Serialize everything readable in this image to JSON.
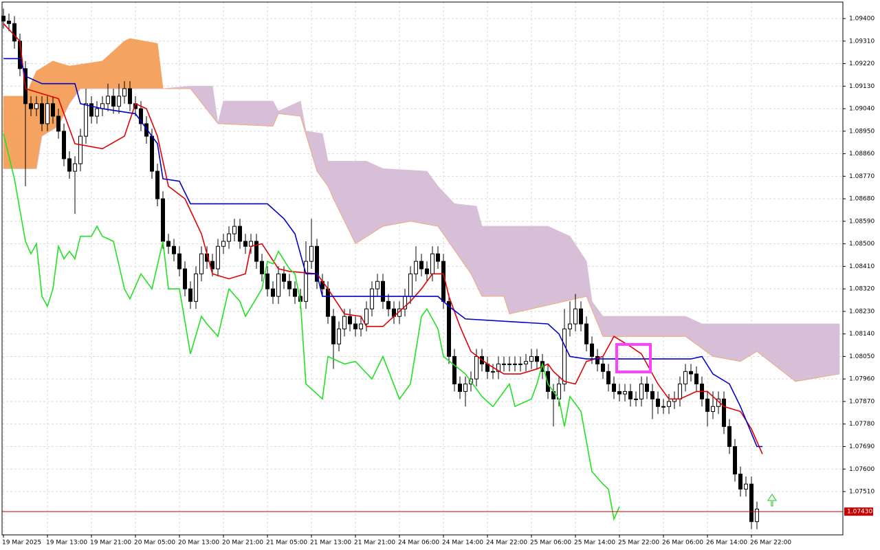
{
  "chart_data": {
    "type": "candlestick",
    "xlim": [
      0,
      152
    ],
    "ylim": [
      1.07337,
      1.09466
    ],
    "grid": true,
    "up_color": "#ffffff",
    "down_color": "#000000",
    "xticks": [
      {
        "value": 0,
        "label": "19 Mar 2025"
      },
      {
        "value": 8,
        "label": "19 Mar 13:00"
      },
      {
        "value": 16,
        "label": "19 Mar 21:00"
      },
      {
        "value": 24,
        "label": "20 Mar 05:00"
      },
      {
        "value": 32,
        "label": "20 Mar 13:00"
      },
      {
        "value": 40,
        "label": "20 Mar 21:00"
      },
      {
        "value": 48,
        "label": "21 Mar 05:00"
      },
      {
        "value": 56,
        "label": "21 Mar 13:00"
      },
      {
        "value": 64,
        "label": "21 Mar 21:00"
      },
      {
        "value": 72,
        "label": "24 Mar 06:00"
      },
      {
        "value": 80,
        "label": "24 Mar 14:00"
      },
      {
        "value": 88,
        "label": "24 Mar 22:00"
      },
      {
        "value": 96,
        "label": "25 Mar 06:00"
      },
      {
        "value": 104,
        "label": "25 Mar 14:00"
      },
      {
        "value": 112,
        "label": "25 Mar 22:00"
      },
      {
        "value": 120,
        "label": "26 Mar 06:00"
      },
      {
        "value": 128,
        "label": "26 Mar 14:00"
      },
      {
        "value": 136,
        "label": "26 Mar 22:00"
      }
    ],
    "yticks": [
      {
        "value": 1.094,
        "label": "1.09400"
      },
      {
        "value": 1.0931,
        "label": "1.09310"
      },
      {
        "value": 1.0922,
        "label": "1.09220"
      },
      {
        "value": 1.0913,
        "label": "1.09130"
      },
      {
        "value": 1.0904,
        "label": "1.09040"
      },
      {
        "value": 1.0895,
        "label": "1.08950"
      },
      {
        "value": 1.0886,
        "label": "1.08860"
      },
      {
        "value": 1.0877,
        "label": "1.08770"
      },
      {
        "value": 1.0868,
        "label": "1.08680"
      },
      {
        "value": 1.0859,
        "label": "1.08590"
      },
      {
        "value": 1.085,
        "label": "1.08500"
      },
      {
        "value": 1.0841,
        "label": "1.08410"
      },
      {
        "value": 1.0832,
        "label": "1.08320"
      },
      {
        "value": 1.0823,
        "label": "1.08230"
      },
      {
        "value": 1.0814,
        "label": "1.08140"
      },
      {
        "value": 1.0805,
        "label": "1.08050"
      },
      {
        "value": 1.0796,
        "label": "1.07960"
      },
      {
        "value": 1.0787,
        "label": "1.07870"
      },
      {
        "value": 1.0778,
        "label": "1.07780"
      },
      {
        "value": 1.0769,
        "label": "1.07690"
      },
      {
        "value": 1.076,
        "label": "1.07600"
      },
      {
        "value": 1.0751,
        "label": "1.07510"
      }
    ],
    "last_price": {
      "value": 1.0743,
      "label": "1.07430",
      "color": "#c80000"
    },
    "open": [
      1.0941,
      1.0939,
      1.0938,
      1.0931,
      1.092,
      1.0906,
      1.0904,
      1.0906,
      1.0898,
      1.0906,
      1.0901,
      1.0895,
      1.0884,
      1.0879,
      1.0882,
      1.0893,
      1.0906,
      1.0901,
      1.0904,
      1.0906,
      1.0909,
      1.0905,
      1.0909,
      1.0912,
      1.0906,
      1.0904,
      1.0898,
      1.0893,
      1.0879,
      1.0868,
      1.0851,
      1.0849,
      1.0846,
      1.084,
      1.0832,
      1.0827,
      1.0838,
      1.0846,
      1.0843,
      1.084,
      1.0849,
      1.0851,
      1.0854,
      1.0857,
      1.0851,
      1.0849,
      1.0851,
      1.0843,
      1.0838,
      1.0832,
      1.0829,
      1.0838,
      1.0835,
      1.0832,
      1.0829,
      1.0827,
      1.0843,
      1.0849,
      1.0835,
      1.0832,
      1.0821,
      1.081,
      1.0816,
      1.0821,
      1.0818,
      1.0816,
      1.0818,
      1.0824,
      1.0832,
      1.0835,
      1.0827,
      1.0824,
      1.0821,
      1.0824,
      1.0829,
      1.0838,
      1.0843,
      1.084,
      1.0838,
      1.0846,
      1.0843,
      1.0827,
      1.0805,
      1.0794,
      1.0791,
      1.0794,
      1.0796,
      1.0805,
      1.0802,
      1.0799,
      1.0799,
      1.0802,
      1.0802,
      1.0802,
      1.0802,
      1.0802,
      1.0803,
      1.0805,
      1.0803,
      1.0799,
      1.0791,
      1.0788,
      1.0794,
      1.0816,
      1.0818,
      1.0824,
      1.0818,
      1.081,
      1.0805,
      1.0802,
      1.0799,
      1.0794,
      1.0791,
      1.079,
      1.0791,
      1.0788,
      1.0788,
      1.0794,
      1.0791,
      1.0788,
      1.0785,
      1.0785,
      1.0787,
      1.0788,
      1.0794,
      1.0799,
      1.0798,
      1.0794,
      1.0788,
      1.0783,
      1.0785,
      1.0788,
      1.0777,
      1.0769,
      1.0758,
      1.0752,
      1.0754,
      1.0739
    ],
    "high": [
      1.0944,
      1.0942,
      1.0941,
      1.0934,
      1.0923,
      1.0909,
      1.0909,
      1.0909,
      1.0909,
      1.0909,
      1.0904,
      1.0898,
      1.0887,
      1.0885,
      1.0896,
      1.0912,
      1.0909,
      1.0907,
      1.0909,
      1.0914,
      1.0912,
      1.0914,
      1.0915,
      1.0915,
      1.0909,
      1.0907,
      1.0901,
      1.0896,
      1.0882,
      1.0871,
      1.0854,
      1.0852,
      1.0849,
      1.0843,
      1.0835,
      1.0841,
      1.0849,
      1.0849,
      1.0846,
      1.0852,
      1.0854,
      1.0857,
      1.086,
      1.086,
      1.0854,
      1.0854,
      1.0854,
      1.0846,
      1.0841,
      1.0835,
      1.0841,
      1.0841,
      1.0838,
      1.0835,
      1.0832,
      1.0851,
      1.086,
      1.0852,
      1.0838,
      1.0835,
      1.0824,
      1.0819,
      1.0824,
      1.0824,
      1.0821,
      1.0821,
      1.0827,
      1.0835,
      1.0838,
      1.0838,
      1.083,
      1.0827,
      1.0827,
      1.0832,
      1.0841,
      1.0849,
      1.0846,
      1.0843,
      1.0849,
      1.0849,
      1.0846,
      1.083,
      1.0808,
      1.0797,
      1.0797,
      1.0799,
      1.0808,
      1.0808,
      1.0805,
      1.0802,
      1.0805,
      1.0805,
      1.0805,
      1.0805,
      1.0805,
      1.0806,
      1.0808,
      1.0808,
      1.0806,
      1.0802,
      1.0794,
      1.0797,
      1.0824,
      1.0827,
      1.083,
      1.0827,
      1.0821,
      1.0813,
      1.0808,
      1.0805,
      1.0802,
      1.0797,
      1.0794,
      1.0794,
      1.0794,
      1.0791,
      1.0797,
      1.0797,
      1.0794,
      1.0791,
      1.0788,
      1.079,
      1.0791,
      1.0797,
      1.0802,
      1.0802,
      1.0801,
      1.0797,
      1.0791,
      1.0791,
      1.0791,
      1.0791,
      1.078,
      1.0772,
      1.0761,
      1.0757,
      1.0757,
      1.0747
    ],
    "low": [
      1.0936,
      1.0935,
      1.0928,
      1.0917,
      1.0873,
      1.0901,
      1.0901,
      1.0895,
      1.0895,
      1.0898,
      1.0892,
      1.0881,
      1.0876,
      1.0862,
      1.0879,
      1.089,
      1.0898,
      1.0898,
      1.0901,
      1.0903,
      1.0902,
      1.0902,
      1.0906,
      1.0903,
      1.0901,
      1.0895,
      1.089,
      1.0876,
      1.0865,
      1.0848,
      1.0846,
      1.0843,
      1.0837,
      1.0829,
      1.0824,
      1.0824,
      1.0835,
      1.084,
      1.0837,
      1.0837,
      1.0846,
      1.0848,
      1.0851,
      1.0848,
      1.0846,
      1.0846,
      1.084,
      1.0835,
      1.0829,
      1.0826,
      1.0826,
      1.0832,
      1.0829,
      1.0826,
      1.0824,
      1.0824,
      1.084,
      1.0832,
      1.0829,
      1.0818,
      1.08,
      1.0807,
      1.0813,
      1.0815,
      1.0813,
      1.0813,
      1.0815,
      1.0821,
      1.0829,
      1.0824,
      1.0821,
      1.0818,
      1.0818,
      1.0821,
      1.0826,
      1.0835,
      1.0837,
      1.0835,
      1.0835,
      1.084,
      1.0824,
      1.0802,
      1.0791,
      1.0788,
      1.0785,
      1.0791,
      1.0793,
      1.0799,
      1.0796,
      1.0796,
      1.0796,
      1.0799,
      1.0799,
      1.0799,
      1.0799,
      1.0799,
      1.08,
      1.08,
      1.0796,
      1.0788,
      1.0777,
      1.0785,
      1.0791,
      1.0813,
      1.0815,
      1.0815,
      1.0807,
      1.0802,
      1.0799,
      1.0796,
      1.0791,
      1.0788,
      1.0787,
      1.0787,
      1.0785,
      1.0785,
      1.0785,
      1.0788,
      1.078,
      1.0782,
      1.0782,
      1.0782,
      1.0784,
      1.0785,
      1.0791,
      1.0795,
      1.0791,
      1.0785,
      1.0777,
      1.078,
      1.0782,
      1.0774,
      1.0766,
      1.0755,
      1.0749,
      1.0749,
      1.0736,
      1.0736
    ],
    "close": [
      1.0939,
      1.0938,
      1.0931,
      1.092,
      1.0906,
      1.0904,
      1.0906,
      1.0898,
      1.0906,
      1.0901,
      1.0895,
      1.0884,
      1.0879,
      1.0882,
      1.0893,
      1.0906,
      1.0901,
      1.0904,
      1.0906,
      1.0909,
      1.0905,
      1.0909,
      1.0912,
      1.0906,
      1.0904,
      1.0898,
      1.0893,
      1.0879,
      1.0868,
      1.0851,
      1.0849,
      1.0846,
      1.084,
      1.0832,
      1.0827,
      1.0838,
      1.0846,
      1.0843,
      1.084,
      1.0849,
      1.0851,
      1.0854,
      1.0857,
      1.0851,
      1.0849,
      1.0851,
      1.0843,
      1.0838,
      1.0832,
      1.0829,
      1.0838,
      1.0835,
      1.0832,
      1.0829,
      1.0827,
      1.0843,
      1.0849,
      1.0835,
      1.0832,
      1.0821,
      1.081,
      1.0816,
      1.0821,
      1.0818,
      1.0816,
      1.0818,
      1.0824,
      1.0832,
      1.0835,
      1.0827,
      1.0824,
      1.0821,
      1.0824,
      1.0829,
      1.0838,
      1.0843,
      1.084,
      1.0838,
      1.0846,
      1.0843,
      1.0827,
      1.0805,
      1.0794,
      1.0791,
      1.0794,
      1.0796,
      1.0805,
      1.0802,
      1.0799,
      1.0799,
      1.0802,
      1.0802,
      1.0802,
      1.0802,
      1.0802,
      1.0803,
      1.0805,
      1.0803,
      1.0799,
      1.0791,
      1.0788,
      1.0794,
      1.0816,
      1.0818,
      1.0824,
      1.0818,
      1.081,
      1.0805,
      1.0802,
      1.0799,
      1.0794,
      1.0791,
      1.079,
      1.0791,
      1.0788,
      1.0788,
      1.0794,
      1.0791,
      1.0788,
      1.0785,
      1.0785,
      1.0787,
      1.0788,
      1.0794,
      1.0799,
      1.0798,
      1.0794,
      1.0788,
      1.0783,
      1.0785,
      1.0788,
      1.0777,
      1.0769,
      1.0758,
      1.0752,
      1.0754,
      1.0739,
      1.0744
    ],
    "cloud": {
      "colors": [
        "#f4a460",
        "#d8bfd8"
      ],
      "a": {
        "x": [
          0,
          4,
          6,
          9,
          12,
          18,
          22,
          23,
          28,
          29,
          34,
          39,
          49,
          50,
          54,
          57,
          59,
          60,
          64,
          69,
          74,
          79,
          85,
          87,
          91,
          92,
          106,
          109,
          124,
          129,
          134,
          137,
          144,
          152
        ],
        "values": [
          1.0909,
          1.0909,
          1.0919,
          1.0923,
          1.0921,
          1.0923,
          1.0931,
          1.0932,
          1.093,
          1.0912,
          1.0912,
          1.0898,
          1.0897,
          1.0902,
          1.0901,
          1.0879,
          1.0873,
          1.0868,
          1.085,
          1.0857,
          1.0859,
          1.0857,
          1.0838,
          1.0829,
          1.0829,
          1.0822,
          1.0829,
          1.0813,
          1.0813,
          1.0805,
          1.0803,
          1.0807,
          1.0795,
          1.0798
        ]
      },
      "b": {
        "x": [
          0,
          6,
          7,
          10,
          12,
          14,
          29,
          34,
          38,
          39,
          40,
          49,
          50,
          54,
          55,
          58,
          59,
          66,
          69,
          77,
          79,
          82,
          86,
          87,
          99,
          103,
          106,
          107,
          109,
          124,
          127,
          152
        ],
        "values": [
          1.088,
          1.088,
          1.0893,
          1.0897,
          1.0906,
          1.0912,
          1.0912,
          1.0913,
          1.0913,
          1.0898,
          1.0907,
          1.0907,
          1.0903,
          1.0907,
          1.0895,
          1.0894,
          1.0883,
          1.0883,
          1.088,
          1.0879,
          1.0873,
          1.0866,
          1.0865,
          1.0857,
          1.0857,
          1.0853,
          1.0843,
          1.0827,
          1.0821,
          1.0821,
          1.0818,
          1.0818
        ]
      }
    },
    "series": [
      {
        "color": "#e00000",
        "x": [
          0,
          3,
          4,
          10,
          13,
          18,
          22,
          24,
          26,
          28,
          30,
          33,
          36,
          38,
          41,
          44,
          45,
          47,
          50,
          52,
          57,
          59,
          62,
          65,
          66,
          69,
          71,
          74,
          76,
          78,
          80,
          81,
          83,
          85,
          88,
          91,
          94,
          97,
          99,
          100,
          102,
          104,
          106,
          109,
          111,
          114,
          116,
          117,
          119,
          121,
          123,
          126,
          128,
          131,
          134,
          136,
          138
        ],
        "values": [
          1.0938,
          1.0931,
          1.0912,
          1.0908,
          1.089,
          1.0888,
          1.0893,
          1.0906,
          1.0904,
          1.0893,
          1.0873,
          1.0868,
          1.0854,
          1.0838,
          1.0836,
          1.0838,
          1.0849,
          1.085,
          1.084,
          1.0839,
          1.0838,
          1.0832,
          1.0822,
          1.0821,
          1.0817,
          1.0817,
          1.0821,
          1.0827,
          1.0832,
          1.0838,
          1.0838,
          1.0829,
          1.0817,
          1.0807,
          1.0802,
          1.0798,
          1.0798,
          1.08,
          1.0802,
          1.0799,
          1.0795,
          1.0794,
          1.0803,
          1.0805,
          1.0813,
          1.0809,
          1.0806,
          1.0802,
          1.0794,
          1.0788,
          1.0788,
          1.0791,
          1.0791,
          1.0785,
          1.0783,
          1.0776,
          1.0766
        ]
      },
      {
        "color": "#0000c8",
        "x": [
          0,
          3,
          4,
          7,
          13,
          14,
          18,
          24,
          26,
          28,
          29,
          32,
          34,
          48,
          51,
          53,
          55,
          57,
          58,
          79,
          81,
          84,
          99,
          101,
          103,
          106,
          125,
          127,
          129,
          132,
          134,
          137,
          138
        ],
        "values": [
          1.0924,
          1.0924,
          1.0917,
          1.0914,
          1.0914,
          1.0906,
          1.0904,
          1.0902,
          1.0896,
          1.089,
          1.0876,
          1.0875,
          1.0866,
          1.0866,
          1.086,
          1.0854,
          1.0838,
          1.0838,
          1.0829,
          1.0829,
          1.0825,
          1.082,
          1.0818,
          1.0814,
          1.0805,
          1.0804,
          1.0804,
          1.0805,
          1.0798,
          1.0794,
          1.0785,
          1.0769,
          1.0769
        ]
      },
      {
        "color": "#22e022",
        "x": [
          0,
          2,
          4,
          5,
          6,
          7,
          8,
          9,
          10,
          11,
          12,
          13,
          14,
          16,
          17,
          18,
          20,
          22,
          23,
          25,
          27,
          29,
          30,
          32,
          34,
          36,
          37,
          39,
          41,
          43,
          44,
          47,
          48,
          49,
          50,
          52,
          53,
          54,
          55,
          58,
          59,
          62,
          64,
          67,
          69,
          72,
          74,
          76,
          77,
          79,
          80,
          84,
          87,
          89,
          92,
          93,
          96,
          97,
          98,
          99,
          101,
          102,
          103,
          105,
          107,
          109,
          110,
          111,
          112
        ],
        "values": [
          1.0894,
          1.0876,
          1.0851,
          1.0846,
          1.085,
          1.0829,
          1.0825,
          1.0832,
          1.0849,
          1.0844,
          1.0847,
          1.0844,
          1.0853,
          1.0853,
          1.0857,
          1.0853,
          1.0851,
          1.0832,
          1.0828,
          1.0838,
          1.0832,
          1.0851,
          1.0832,
          1.0832,
          1.0806,
          1.0821,
          1.0818,
          1.0813,
          1.0832,
          1.0827,
          1.0821,
          1.0832,
          1.0843,
          1.0842,
          1.0847,
          1.084,
          1.0838,
          1.0827,
          1.0794,
          1.0788,
          1.0805,
          1.0802,
          1.0803,
          1.0796,
          1.0805,
          1.0788,
          1.0794,
          1.0821,
          1.0824,
          1.0816,
          1.0805,
          1.0798,
          1.0789,
          1.0785,
          1.0794,
          1.0785,
          1.0788,
          1.0794,
          1.0802,
          1.0794,
          1.0788,
          1.0777,
          1.0789,
          1.0783,
          1.0759,
          1.0754,
          1.0752,
          1.074,
          1.0745
        ]
      }
    ]
  }
}
